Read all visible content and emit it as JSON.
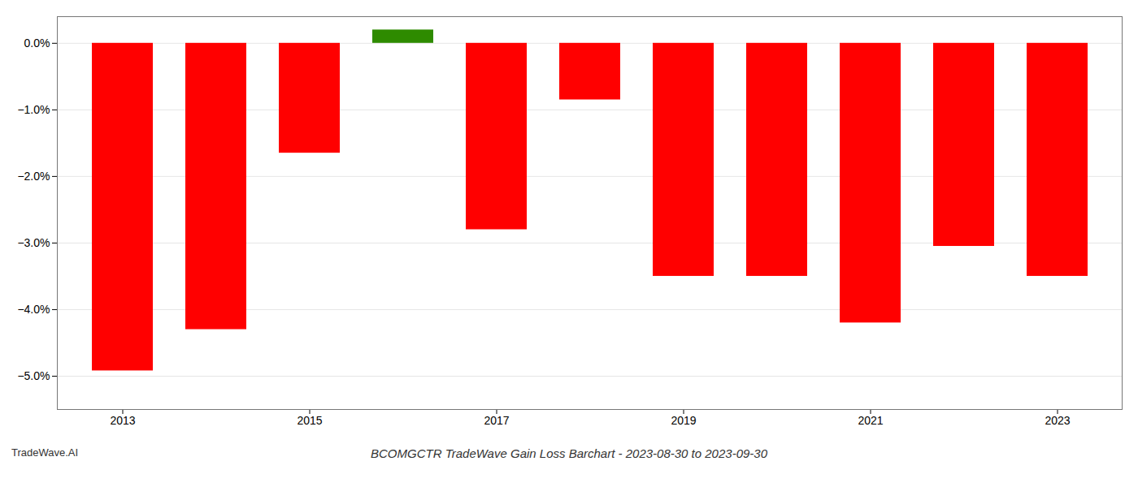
{
  "chart_data": {
    "type": "bar",
    "title": "BCOMGCTR TradeWave Gain Loss Barchart - 2023-08-30 to 2023-09-30",
    "annotations": [
      "TradeWave.AI"
    ],
    "categories": [
      "2013",
      null,
      "2015",
      null,
      "2017",
      null,
      "2019",
      null,
      "2021",
      null,
      "2023"
    ],
    "values": [
      -4.92,
      -4.3,
      -1.65,
      0.2,
      -2.8,
      -0.85,
      -3.5,
      -3.5,
      -4.2,
      -3.05,
      -3.5
    ],
    "colors": [
      "#ff0000",
      "#ff0000",
      "#ff0000",
      "#2e8b00",
      "#ff0000",
      "#ff0000",
      "#ff0000",
      "#ff0000",
      "#ff0000",
      "#ff0000",
      "#ff0000"
    ],
    "ylim": [
      -5.5,
      0.4
    ],
    "yticks": [
      {
        "value": 0.0,
        "label": "0.0%"
      },
      {
        "value": -1.0,
        "label": "−1.0%"
      },
      {
        "value": -2.0,
        "label": "−2.0%"
      },
      {
        "value": -3.0,
        "label": "−3.0%"
      },
      {
        "value": -4.0,
        "label": "−4.0%"
      },
      {
        "value": -5.0,
        "label": "−5.0%"
      }
    ],
    "grid": true
  }
}
